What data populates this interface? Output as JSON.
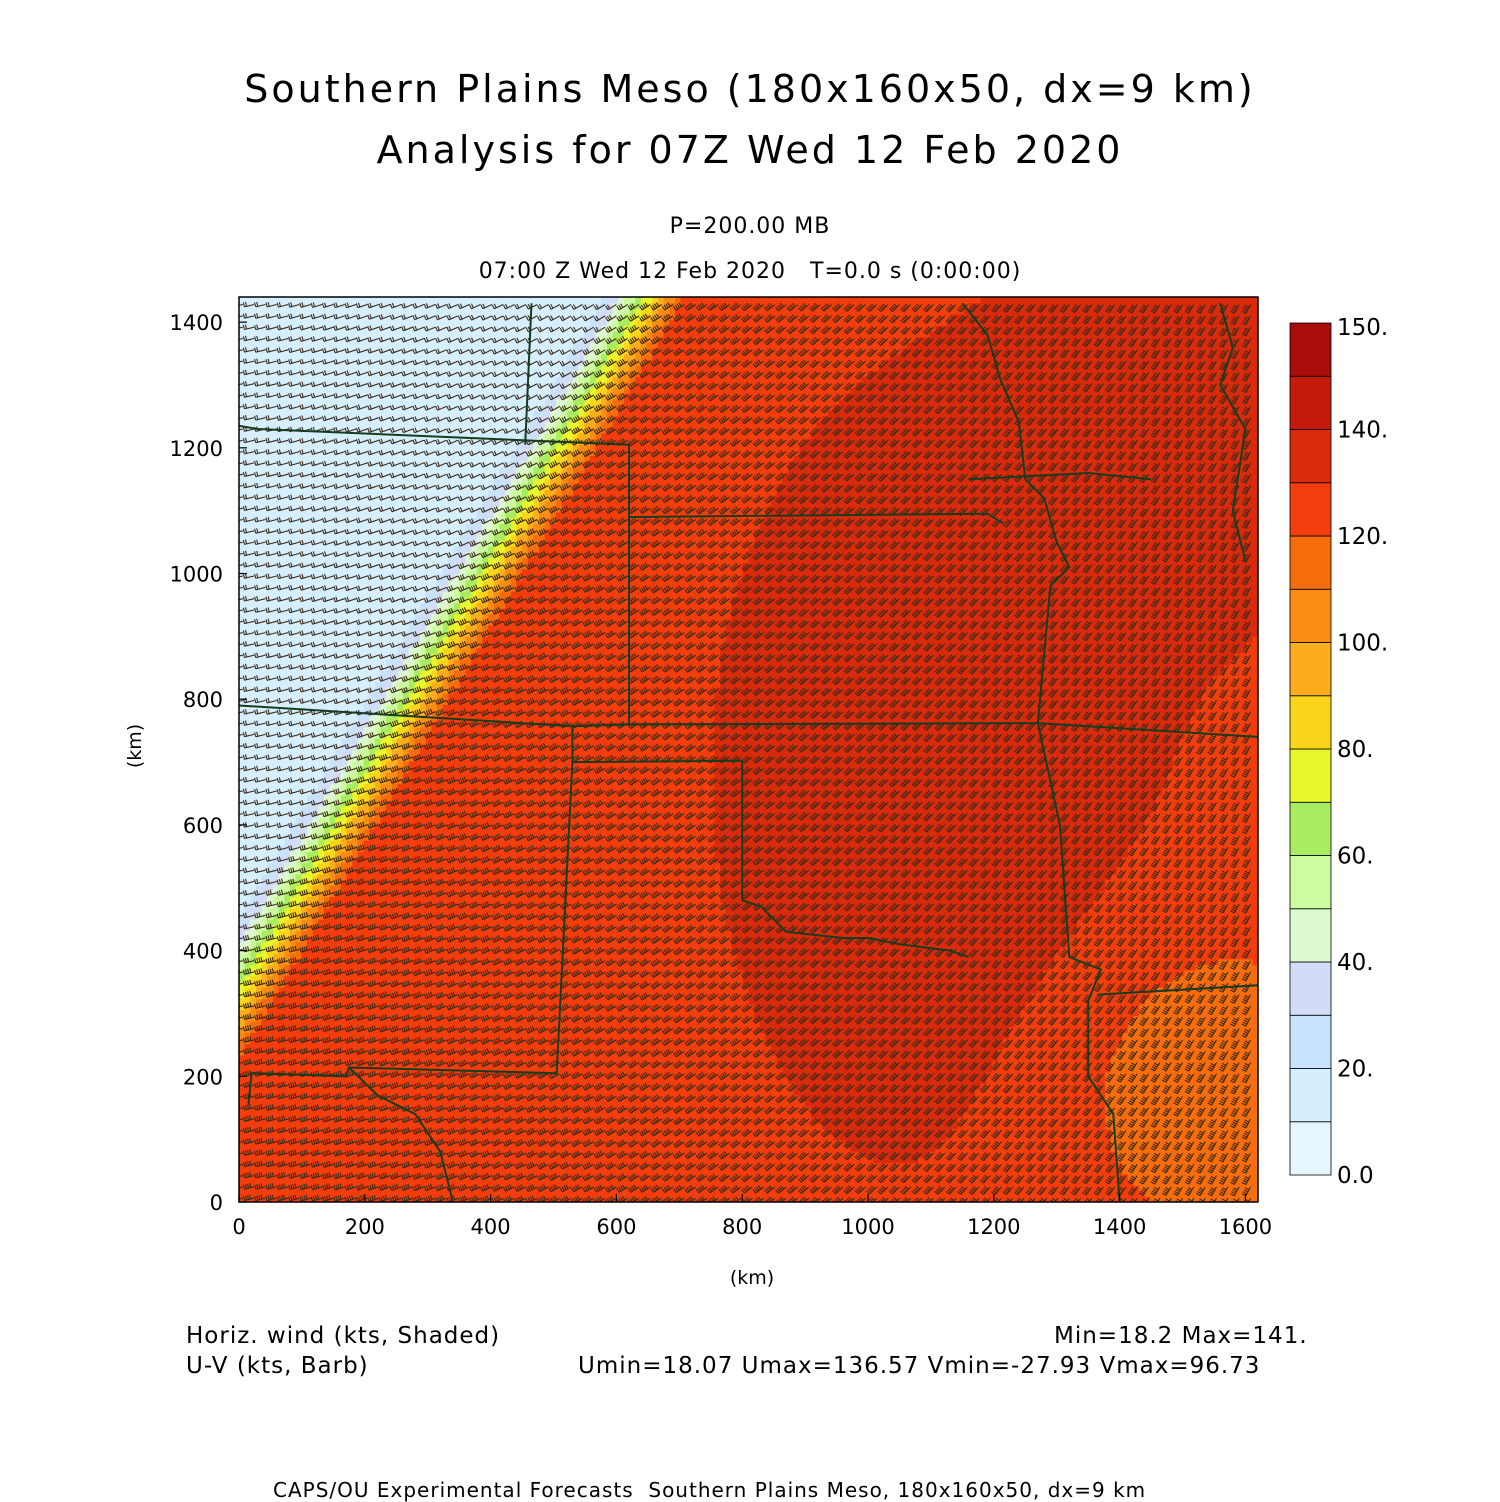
{
  "header": {
    "title_line1": "Southern Plains Meso (180x160x50, dx=9 km)",
    "title_line2": "Analysis for 07Z Wed 12 Feb 2020",
    "level": "P=200.00 MB",
    "time": "07:00 Z Wed 12 Feb 2020   T=0.0 s (0:00:00)"
  },
  "legend_text": {
    "field1": "Horiz. wind (kts, Shaded)",
    "field2": "U-V (kts, Barb)",
    "minmax": "Min=18.2 Max=141.",
    "uv_minmax": "Umin=18.07 Umax=136.57 Vmin=-27.93 Vmax=96.73"
  },
  "footer": {
    "credit": "CAPS/OU Experimental Forecasts  Southern Plains Meso, 180x160x50, dx=9 km"
  },
  "chart_data": {
    "type": "heatmap",
    "field": "Horizontal wind speed (kts) with U-V wind barbs",
    "xlabel": "(km)",
    "ylabel": "(km)",
    "xlim": [
      0,
      1620
    ],
    "ylim": [
      0,
      1440
    ],
    "x_ticks": [
      0,
      200,
      400,
      600,
      800,
      1000,
      1200,
      1400,
      1600
    ],
    "y_ticks": [
      0,
      200,
      400,
      600,
      800,
      1000,
      1200,
      1400
    ],
    "colorbar": {
      "levels": [
        0,
        10,
        20,
        30,
        40,
        50,
        60,
        70,
        80,
        90,
        100,
        110,
        120,
        130,
        140,
        150
      ],
      "labels": [
        "0.0",
        "20.",
        "40.",
        "60.",
        "80.",
        "100.",
        "120.",
        "140.",
        "150."
      ],
      "colors": [
        "#e8f7ff",
        "#d6efff",
        "#c8e2fb",
        "#d2dcf9",
        "#dcf9cf",
        "#cdfca0",
        "#a9ec5f",
        "#e9f72d",
        "#fad51b",
        "#fbad1b",
        "#f98d13",
        "#f76c0c",
        "#f33d0c",
        "#da2a0c",
        "#c31a0b",
        "#a80c0b"
      ]
    },
    "min": 18.2,
    "max": 141,
    "umin": 18.07,
    "umax": 136.57,
    "vmin": -27.93,
    "vmax": 96.73
  }
}
